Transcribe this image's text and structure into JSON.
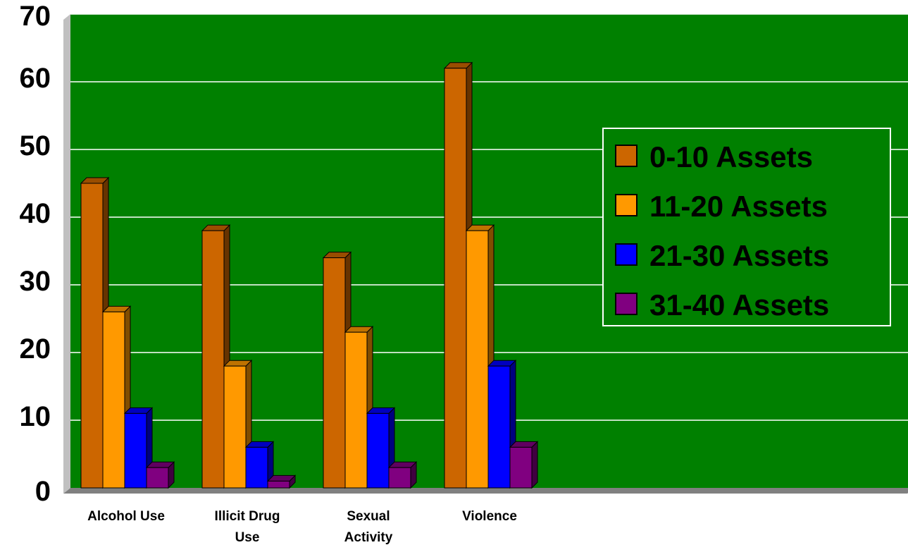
{
  "chart_data": {
    "type": "bar",
    "categories": [
      [
        "Alcohol Use"
      ],
      [
        "Illicit Drug",
        "Use"
      ],
      [
        "Sexual",
        "Activity"
      ],
      [
        "Violence"
      ]
    ],
    "series": [
      {
        "name": "0-10 Assets",
        "values": [
          45,
          38,
          34,
          62
        ],
        "color": "#CC6600"
      },
      {
        "name": "11-20 Assets",
        "values": [
          26,
          18,
          23,
          38
        ],
        "color": "#FF9900"
      },
      {
        "name": "21-30 Assets",
        "values": [
          11,
          6,
          11,
          18
        ],
        "color": "#0000FF"
      },
      {
        "name": "31-40 Assets",
        "values": [
          3,
          1,
          3,
          6
        ],
        "color": "#800080"
      }
    ],
    "ylim": [
      0,
      70
    ],
    "yticks": [
      0,
      10,
      20,
      30,
      40,
      50,
      60,
      70
    ],
    "grid": true,
    "legend_position": "right",
    "plot_background": "#008000",
    "title": "",
    "xlabel": "",
    "ylabel": ""
  }
}
